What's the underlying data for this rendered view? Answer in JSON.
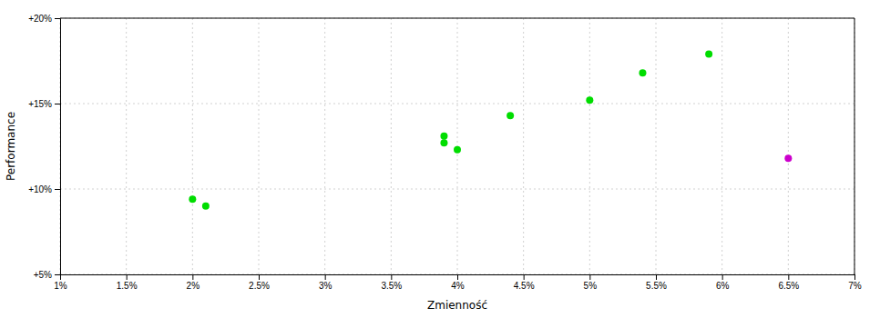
{
  "chart_data": {
    "type": "scatter",
    "xlabel": "Zmienność",
    "ylabel": "Performance",
    "xlim": [
      0.01,
      0.07
    ],
    "ylim": [
      0.05,
      0.2
    ],
    "xticks": [
      {
        "value": 0.01,
        "label": "1%"
      },
      {
        "value": 0.015,
        "label": "1.5%"
      },
      {
        "value": 0.02,
        "label": "2%"
      },
      {
        "value": 0.025,
        "label": "2.5%"
      },
      {
        "value": 0.03,
        "label": "3%"
      },
      {
        "value": 0.035,
        "label": "3.5%"
      },
      {
        "value": 0.04,
        "label": "4%"
      },
      {
        "value": 0.045,
        "label": "4.5%"
      },
      {
        "value": 0.05,
        "label": "5%"
      },
      {
        "value": 0.055,
        "label": "5.5%"
      },
      {
        "value": 0.06,
        "label": "6%"
      },
      {
        "value": 0.065,
        "label": "6.5%"
      },
      {
        "value": 0.07,
        "label": "7%"
      }
    ],
    "yticks": [
      {
        "value": 0.05,
        "label": "+5%"
      },
      {
        "value": 0.1,
        "label": "+10%"
      },
      {
        "value": 0.15,
        "label": "+15%"
      },
      {
        "value": 0.2,
        "label": "+20%"
      }
    ],
    "grid": true,
    "series": [
      {
        "color": "#00dd00",
        "x": [
          0.02,
          0.021,
          0.039,
          0.039,
          0.04,
          0.044,
          0.05,
          0.054,
          0.059
        ],
        "values": [
          0.094,
          0.09,
          0.131,
          0.127,
          0.123,
          0.143,
          0.152,
          0.168,
          0.179
        ]
      },
      {
        "color": "#cc00cc",
        "x": [
          0.065
        ],
        "values": [
          0.118
        ]
      }
    ]
  }
}
